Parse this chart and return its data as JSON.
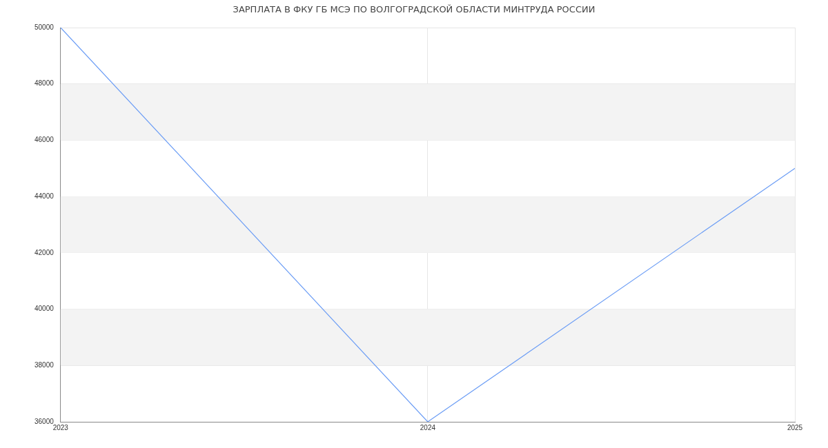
{
  "chart_data": {
    "type": "line",
    "title": "ЗАРПЛАТА В ФКУ ГБ МСЭ ПО ВОЛГОГРАДСКОЙ ОБЛАСТИ МИНТРУДА РОССИИ",
    "x": [
      2023,
      2024,
      2025
    ],
    "series": [
      {
        "color": "#6a9cf5",
        "values": [
          50000,
          36000,
          45000
        ]
      }
    ],
    "xlim": [
      2023,
      2025
    ],
    "xticks": [
      2023,
      2024,
      2025
    ],
    "ylim": [
      36000,
      50000
    ],
    "yticks": [
      36000,
      38000,
      40000,
      42000,
      44000,
      46000,
      48000,
      50000
    ],
    "bands": [
      {
        "axis": "y",
        "from": 38000,
        "to": 40000,
        "color": "#f3f3f3"
      },
      {
        "axis": "y",
        "from": 42000,
        "to": 44000,
        "color": "#f3f3f3"
      },
      {
        "axis": "y",
        "from": 46000,
        "to": 48000,
        "color": "#f3f3f3"
      }
    ],
    "grid": true,
    "legend": false,
    "marker": "none",
    "line_style": "solid"
  }
}
